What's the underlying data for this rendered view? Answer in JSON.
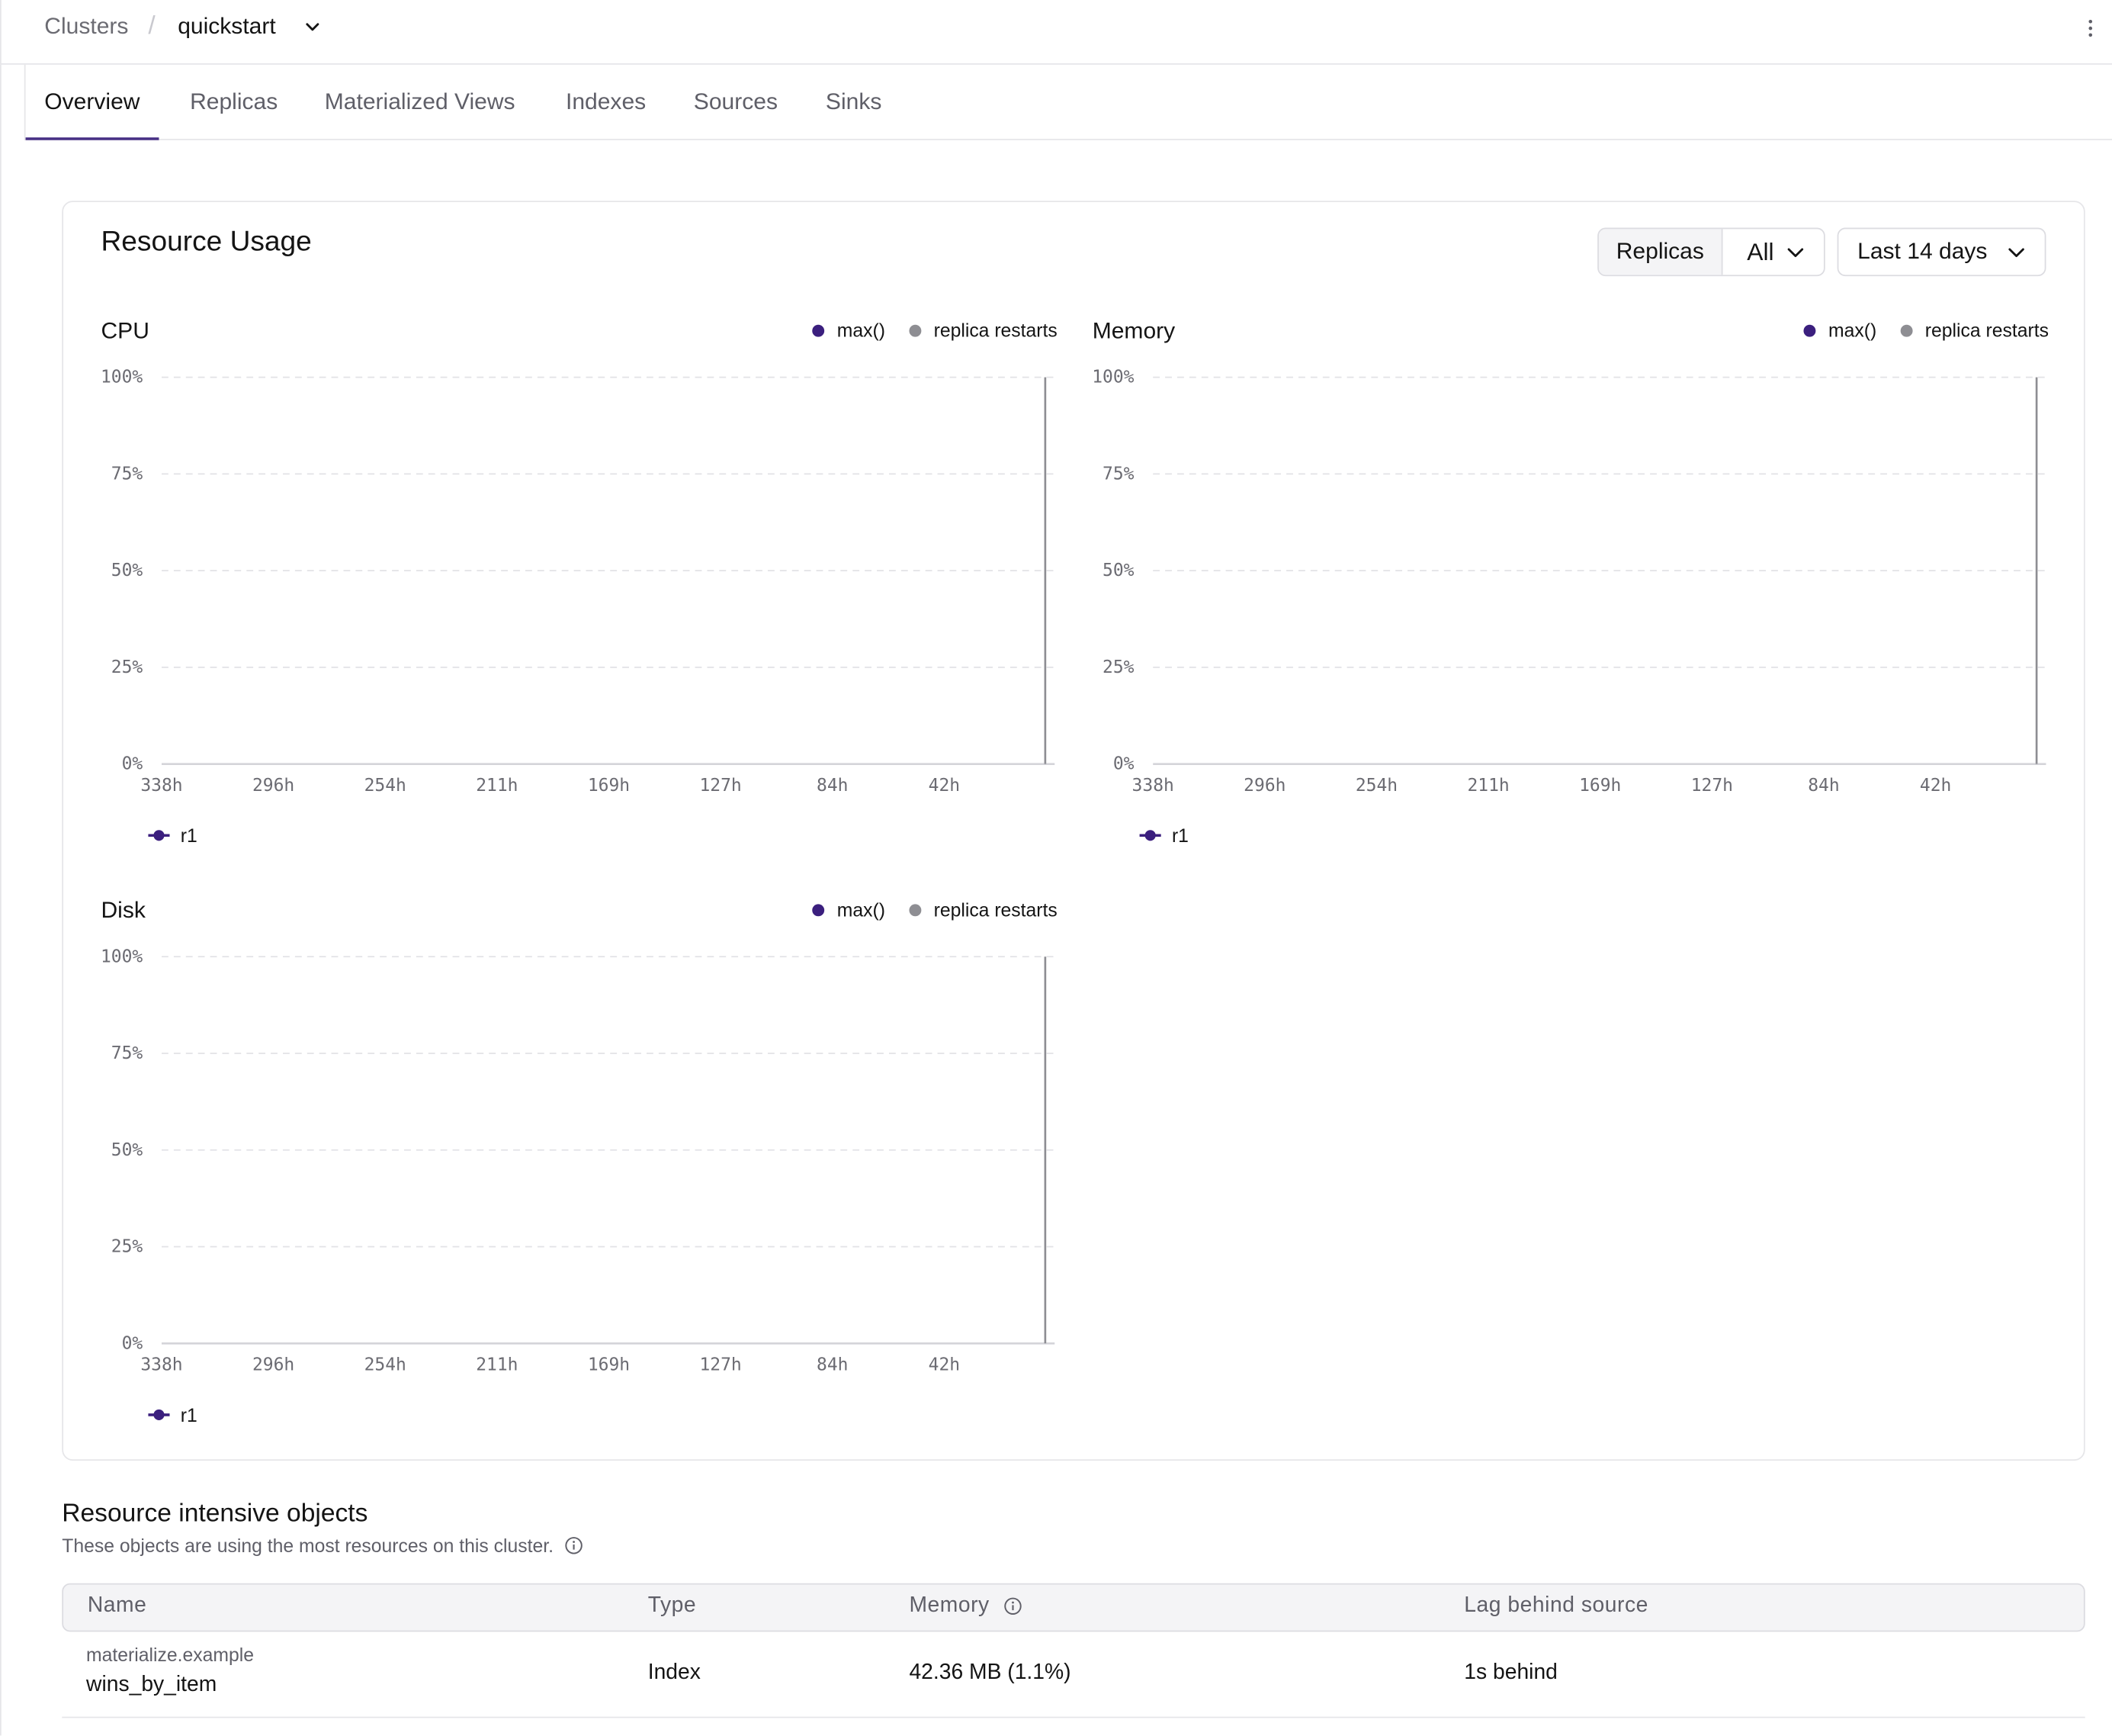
{
  "breadcrumb": {
    "root": "Clusters",
    "separator": "/",
    "current": "quickstart"
  },
  "tabs": [
    {
      "label": "Overview",
      "active": true
    },
    {
      "label": "Replicas"
    },
    {
      "label": "Materialized Views"
    },
    {
      "label": "Indexes"
    },
    {
      "label": "Sources"
    },
    {
      "label": "Sinks"
    }
  ],
  "resource_usage": {
    "title": "Resource Usage",
    "filter_label": "Replicas",
    "filter_value": "All",
    "time_range": "Last 14 days"
  },
  "legend": {
    "max": "max()",
    "restarts": "replica restarts"
  },
  "colors": {
    "accent": "#472f85",
    "max_series": "#3b1f7e",
    "restarts": "#8e8e93"
  },
  "chart_data": [
    {
      "type": "line",
      "title": "CPU",
      "x_ticks": [
        "338h",
        "296h",
        "254h",
        "211h",
        "169h",
        "127h",
        "84h",
        "42h"
      ],
      "y_ticks": [
        "100%",
        "75%",
        "50%",
        "25%",
        "0%"
      ],
      "ylim": [
        0,
        100
      ],
      "series": [
        {
          "name": "max()",
          "values": []
        },
        {
          "name": "replica restarts",
          "values": []
        }
      ],
      "replicas": [
        "r1"
      ],
      "grid": true
    },
    {
      "type": "line",
      "title": "Memory",
      "x_ticks": [
        "338h",
        "296h",
        "254h",
        "211h",
        "169h",
        "127h",
        "84h",
        "42h"
      ],
      "y_ticks": [
        "100%",
        "75%",
        "50%",
        "25%",
        "0%"
      ],
      "ylim": [
        0,
        100
      ],
      "series": [
        {
          "name": "max()",
          "values": []
        },
        {
          "name": "replica restarts",
          "values": []
        }
      ],
      "replicas": [
        "r1"
      ],
      "grid": true
    },
    {
      "type": "line",
      "title": "Disk",
      "x_ticks": [
        "338h",
        "296h",
        "254h",
        "211h",
        "169h",
        "127h",
        "84h",
        "42h"
      ],
      "y_ticks": [
        "100%",
        "75%",
        "50%",
        "25%",
        "0%"
      ],
      "ylim": [
        0,
        100
      ],
      "series": [
        {
          "name": "max()",
          "values": []
        },
        {
          "name": "replica restarts",
          "values": []
        }
      ],
      "replicas": [
        "r1"
      ],
      "grid": true
    }
  ],
  "objects": {
    "title": "Resource intensive objects",
    "description": "These objects are using the most resources on this cluster.",
    "columns": [
      "Name",
      "Type",
      "Memory",
      "Lag behind source"
    ],
    "rows": [
      {
        "schema": "materialize.example",
        "name": "wins_by_item",
        "type": "Index",
        "memory": "42.36 MB (1.1%)",
        "lag": "1s behind"
      }
    ]
  }
}
